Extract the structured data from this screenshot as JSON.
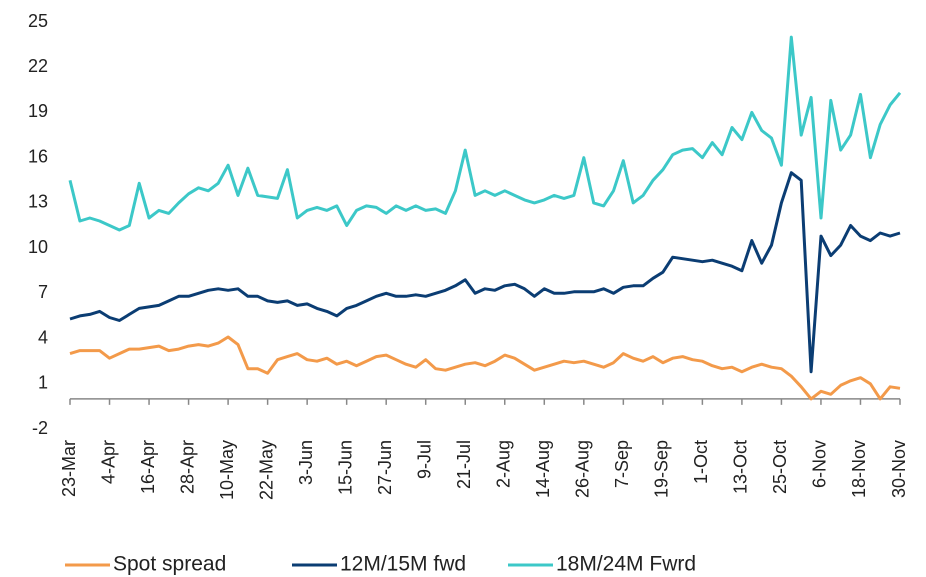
{
  "chart_data": {
    "type": "line",
    "categories": [
      "23-Mar",
      null,
      null,
      null,
      "4-Apr",
      null,
      null,
      null,
      "16-Apr",
      null,
      null,
      null,
      "28-Apr",
      null,
      null,
      null,
      "10-May",
      null,
      null,
      null,
      "22-May",
      null,
      null,
      null,
      "3-Jun",
      null,
      null,
      null,
      "15-Jun",
      null,
      null,
      null,
      "27-Jun",
      null,
      null,
      null,
      "9-Jul",
      null,
      null,
      null,
      "21-Jul",
      null,
      null,
      null,
      "2-Aug",
      null,
      null,
      null,
      "14-Aug",
      null,
      null,
      null,
      "26-Aug",
      null,
      null,
      null,
      "7-Sep",
      null,
      null,
      null,
      "19-Sep",
      null,
      null,
      null,
      "1-Oct",
      null,
      null,
      null,
      "13-Oct",
      null,
      null,
      null,
      "25-Oct",
      null,
      null,
      null,
      "6-Nov",
      null,
      null,
      null,
      "18-Nov",
      null,
      null,
      null,
      "30-Nov"
    ],
    "series": [
      {
        "name": "Spot spread",
        "color": "#f39a4a",
        "values": [
          3.0,
          3.2,
          3.2,
          3.2,
          2.7,
          3.0,
          3.3,
          3.3,
          3.4,
          3.5,
          3.2,
          3.3,
          3.5,
          3.6,
          3.5,
          3.7,
          4.1,
          3.6,
          2.0,
          2.0,
          1.7,
          2.6,
          2.8,
          3.0,
          2.6,
          2.5,
          2.7,
          2.3,
          2.5,
          2.2,
          2.5,
          2.8,
          2.9,
          2.6,
          2.3,
          2.1,
          2.6,
          2.0,
          1.9,
          2.1,
          2.3,
          2.4,
          2.2,
          2.5,
          2.9,
          2.7,
          2.3,
          1.9,
          2.1,
          2.3,
          2.5,
          2.4,
          2.5,
          2.3,
          2.1,
          2.4,
          3.0,
          2.7,
          2.5,
          2.8,
          2.4,
          2.7,
          2.8,
          2.6,
          2.5,
          2.2,
          2.0,
          2.1,
          1.8,
          2.1,
          2.3,
          2.1,
          2.0,
          1.5,
          0.8,
          0.0,
          0.5,
          0.3,
          0.9,
          1.2,
          1.4,
          1.0,
          0.0,
          0.8,
          0.7
        ]
      },
      {
        "name": "12M/15M fwd",
        "color": "#0b3d73",
        "values": [
          5.3,
          5.5,
          5.6,
          5.8,
          5.4,
          5.2,
          5.6,
          6.0,
          6.1,
          6.2,
          6.5,
          6.8,
          6.8,
          7.0,
          7.2,
          7.3,
          7.2,
          7.3,
          6.8,
          6.8,
          6.5,
          6.4,
          6.5,
          6.2,
          6.3,
          6.0,
          5.8,
          5.5,
          6.0,
          6.2,
          6.5,
          6.8,
          7.0,
          6.8,
          6.8,
          6.9,
          6.8,
          7.0,
          7.2,
          7.5,
          7.9,
          7.0,
          7.3,
          7.2,
          7.5,
          7.6,
          7.3,
          6.8,
          7.3,
          7.0,
          7.0,
          7.1,
          7.1,
          7.1,
          7.3,
          7.0,
          7.4,
          7.5,
          7.5,
          8.0,
          8.4,
          9.4,
          9.3,
          9.2,
          9.1,
          9.2,
          9.0,
          8.8,
          8.5,
          10.5,
          9.0,
          10.2,
          13.0,
          15.0,
          14.5,
          1.8,
          10.8,
          9.5,
          10.2,
          11.5,
          10.8,
          10.5,
          11.0,
          10.8,
          11.0
        ]
      },
      {
        "name": "18M/24M Fwrd",
        "color": "#3cc8c8",
        "values": [
          14.5,
          11.8,
          12.0,
          11.8,
          11.5,
          11.2,
          11.5,
          14.3,
          12.0,
          12.5,
          12.3,
          13.0,
          13.6,
          14.0,
          13.8,
          14.3,
          15.5,
          13.5,
          15.3,
          13.5,
          13.4,
          13.3,
          15.2,
          12.0,
          12.5,
          12.7,
          12.5,
          12.8,
          11.5,
          12.5,
          12.8,
          12.7,
          12.3,
          12.8,
          12.5,
          12.8,
          12.5,
          12.6,
          12.3,
          13.8,
          16.5,
          13.5,
          13.8,
          13.5,
          13.8,
          13.5,
          13.2,
          13.0,
          13.2,
          13.5,
          13.3,
          13.5,
          16.0,
          13.0,
          12.8,
          13.8,
          15.8,
          13.0,
          13.5,
          14.5,
          15.2,
          16.2,
          16.5,
          16.6,
          16.0,
          17.0,
          16.2,
          18.0,
          17.2,
          19.0,
          17.8,
          17.3,
          15.5,
          24.0,
          17.5,
          20.0,
          12.0,
          19.8,
          16.5,
          17.5,
          20.2,
          16.0,
          18.2,
          19.5,
          20.3
        ]
      }
    ],
    "ylim": [
      -2,
      25
    ],
    "yticks": [
      -2,
      1,
      4,
      7,
      10,
      13,
      16,
      19,
      22,
      25
    ],
    "grid": false,
    "legend": "bottom"
  }
}
